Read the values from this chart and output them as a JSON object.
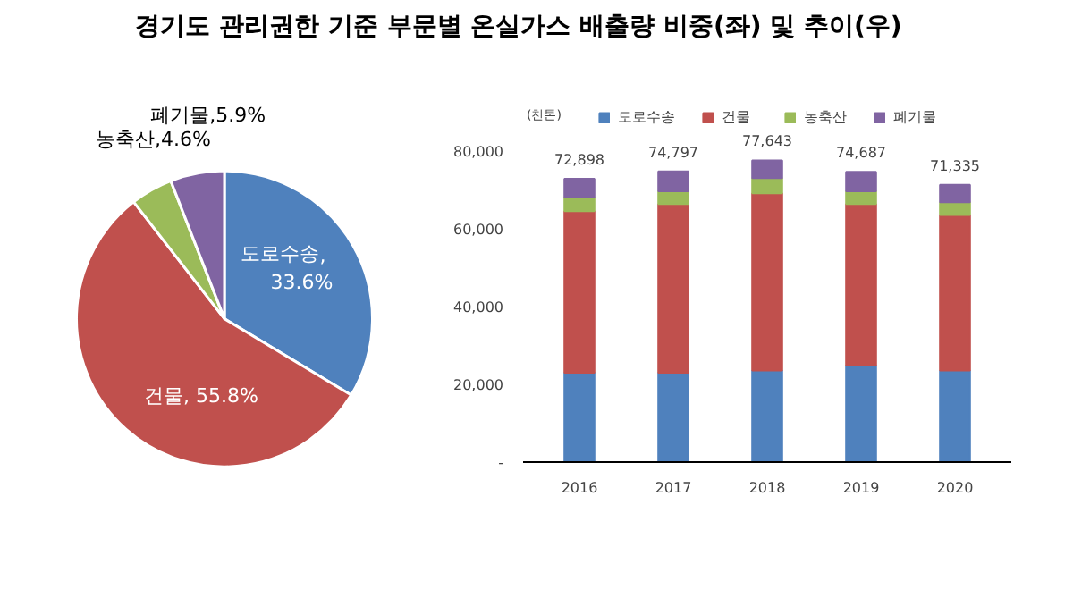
{
  "chart_data": [
    {
      "type": "pie",
      "title": "경기도 관리권한 기준 부문별 온실가스 배출량 비중(좌) 및 추이(우)",
      "categories": [
        "도로수송",
        "건물",
        "농축산",
        "폐기물"
      ],
      "values": [
        33.6,
        55.8,
        4.6,
        5.9
      ],
      "colors": [
        "#4f81bd",
        "#c0504d",
        "#9bbb59",
        "#8064a2"
      ],
      "value_labels": [
        ",\n33.6%",
        ", 55.8%",
        ",4.6%",
        ",5.9%"
      ]
    },
    {
      "type": "bar",
      "stacked": true,
      "ylabel": "(천톤)",
      "categories": [
        "2016",
        "2017",
        "2018",
        "2019",
        "2020"
      ],
      "series": [
        {
          "name": "도로수송",
          "color": "#4f81bd",
          "values": [
            23000,
            23000,
            23600,
            24900,
            23600
          ]
        },
        {
          "name": "건물",
          "color": "#c0504d",
          "values": [
            41600,
            43400,
            45600,
            41500,
            40000
          ]
        },
        {
          "name": "농축산",
          "color": "#9bbb59",
          "values": [
            3600,
            3300,
            3900,
            3300,
            3300
          ]
        },
        {
          "name": "폐기물",
          "color": "#8064a2",
          "values": [
            4698,
            5097,
            4543,
            4987,
            4435
          ]
        }
      ],
      "totals": [
        "72,898",
        "74,797",
        "77,643",
        "74,687",
        "71,335"
      ],
      "ylim": [
        0,
        92000
      ],
      "yticks": [
        {
          "value": 0,
          "label": "-"
        },
        {
          "value": 20000,
          "label": "20,000"
        },
        {
          "value": 40000,
          "label": "40,000"
        },
        {
          "value": 60000,
          "label": "60,000"
        },
        {
          "value": 80000,
          "label": "80,000"
        }
      ],
      "grid": false,
      "legend": "top"
    }
  ]
}
